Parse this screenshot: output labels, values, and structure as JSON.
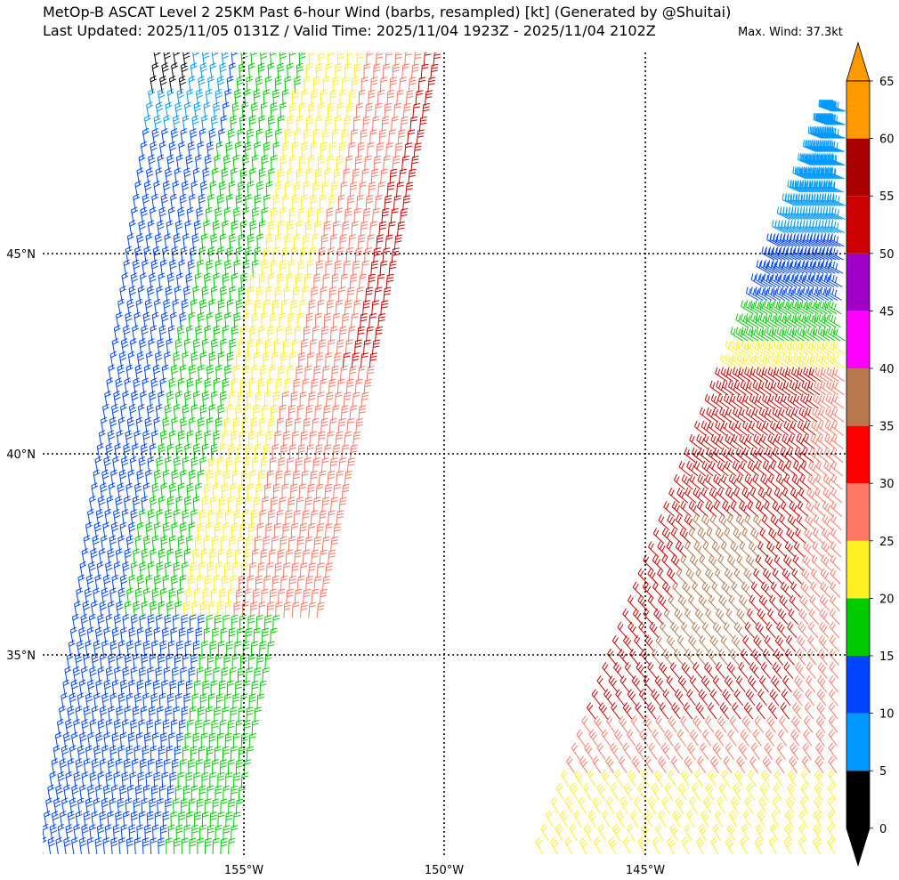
{
  "header": {
    "title_line1": "MetOp-B ASCAT Level 2 25KM Past 6-hour Wind (barbs, resampled) [kt] (Generated by @Shuitai)",
    "title_line2": "Last Updated: 2025/11/05 0131Z / Valid Time: 2025/11/04 1923Z - 2025/11/04 2102Z",
    "max_wind": "Max. Wind: 37.3kt"
  },
  "map": {
    "lat_labels": [
      "45°N",
      "40°N",
      "35°N"
    ],
    "lon_labels": [
      "155°W",
      "150°W",
      "145°W"
    ],
    "grid_style": "dotted"
  },
  "colorbar": {
    "units": "kt",
    "ticks": [
      "0",
      "5",
      "10",
      "15",
      "20",
      "25",
      "30",
      "35",
      "40",
      "45",
      "50",
      "55",
      "60",
      "65"
    ],
    "colors": [
      "#000000",
      "#0099ff",
      "#0044ff",
      "#00cc00",
      "#ffee22",
      "#ff7766",
      "#ff0000",
      "#b87850",
      "#ff00ff",
      "#a000c8",
      "#cc0000",
      "#aa0000",
      "#ff9900"
    ],
    "extend": "both"
  }
}
